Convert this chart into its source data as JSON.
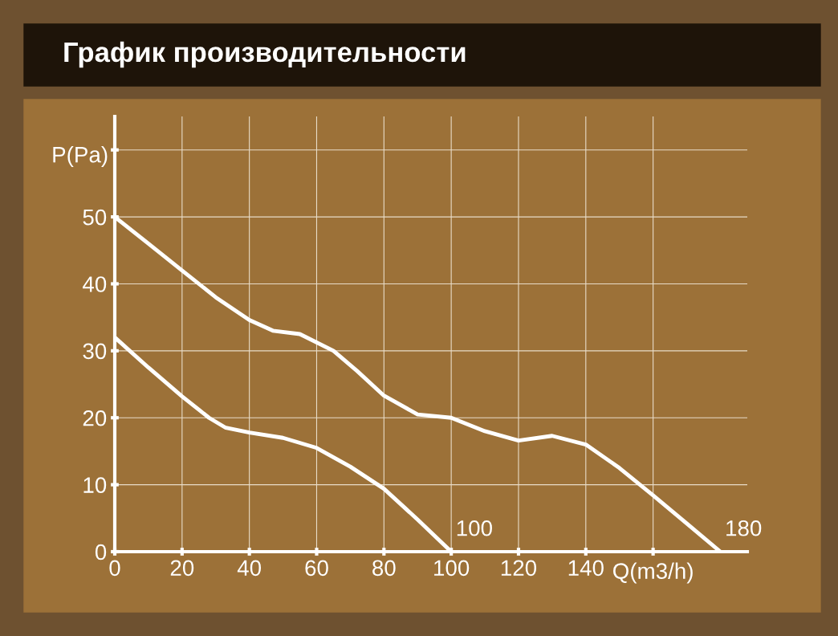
{
  "chart_data": {
    "type": "line",
    "title": "График производительности",
    "xlabel": "Q(m3/h)",
    "ylabel": "P(Pa)",
    "series": [
      {
        "color": "#ffffff",
        "x": [
          0,
          10,
          20,
          30,
          40,
          47,
          55,
          65,
          72,
          80,
          90,
          100,
          110,
          120,
          130,
          140,
          150,
          160,
          170,
          180
        ],
        "values": [
          50,
          46,
          42,
          38,
          34.6,
          33,
          32.5,
          30,
          27,
          23.3,
          20.5,
          20,
          18,
          16.6,
          17.3,
          16,
          12.5,
          8.4,
          4.2,
          0
        ]
      },
      {
        "color": "#ffffff",
        "x": [
          0,
          10,
          20,
          28,
          33,
          40,
          50,
          60,
          70,
          80,
          90,
          100
        ],
        "values": [
          32,
          27.5,
          23.2,
          20,
          18.5,
          17.8,
          17,
          15.5,
          12.7,
          9.4,
          4.8,
          0
        ]
      }
    ],
    "annotations": [
      {
        "text": "100",
        "x": 100,
        "y": 0
      },
      {
        "text": "180",
        "x": 180,
        "y": 0
      }
    ],
    "xlim": [
      0,
      188
    ],
    "ylim": [
      0,
      65
    ],
    "xticks": [
      0,
      20,
      40,
      60,
      80,
      100,
      120,
      140,
      {
        "value": 160,
        "label": null
      }
    ],
    "yticks": [
      0,
      10,
      20,
      30,
      40,
      50,
      {
        "value": 60,
        "label": null
      }
    ],
    "grid": true,
    "marker": "none",
    "line_style": "solid"
  }
}
